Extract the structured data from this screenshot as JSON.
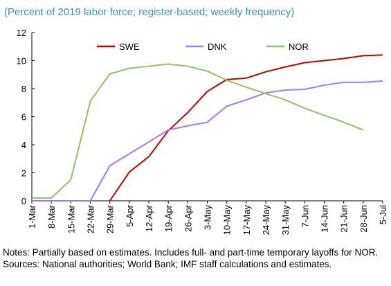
{
  "chart_data": {
    "type": "line",
    "subtitle": "(Percent of 2019 labor force; register-based; weekly frequency)",
    "categories": [
      "1-Mar",
      "8-Mar",
      "15-Mar",
      "22-Mar",
      "29-Mar",
      "5-Apr",
      "12-Apr",
      "19-Apr",
      "26-Apr",
      "3-May",
      "10-May",
      "17-May",
      "24-May",
      "31-May",
      "7-Jun",
      "14-Jun",
      "21-Jun",
      "28-Jun",
      "5-Jul"
    ],
    "series": [
      {
        "name": "SWE",
        "color": "#c00000",
        "values": [
          null,
          null,
          null,
          null,
          0,
          2.05,
          3.15,
          5.0,
          6.3,
          7.8,
          8.65,
          8.75,
          9.2,
          9.55,
          9.85,
          10.0,
          10.15,
          10.35,
          10.4
        ]
      },
      {
        "name": "DNK",
        "color": "#9f7af2",
        "values": [
          0,
          0,
          0,
          0,
          2.5,
          3.35,
          4.2,
          5.05,
          5.35,
          5.6,
          6.75,
          7.2,
          7.7,
          7.9,
          7.95,
          8.25,
          8.45,
          8.45,
          8.55
        ]
      },
      {
        "name": "NOR",
        "color": "#92bf6c",
        "values": [
          0.2,
          0.2,
          1.5,
          7.1,
          9.05,
          9.45,
          9.6,
          9.75,
          9.6,
          9.25,
          8.6,
          8.1,
          7.65,
          7.2,
          6.6,
          6.1,
          5.6,
          5.05,
          null
        ]
      }
    ],
    "ylim": [
      0,
      12
    ],
    "yticks": [
      0,
      2,
      4,
      6,
      8,
      10,
      12
    ],
    "notes": "Notes: Partially based on estimates. Includes full- and part-time temporary layoffs for NOR. Sources: National authorities; World Bank; IMF staff calculations and estimates."
  }
}
